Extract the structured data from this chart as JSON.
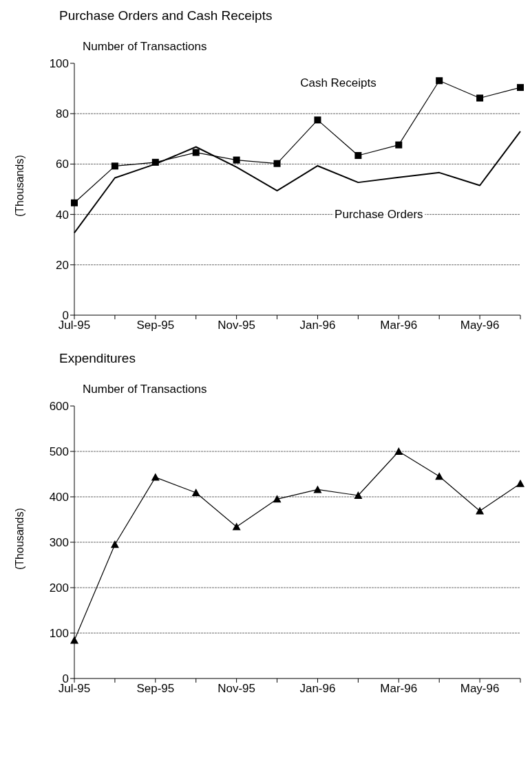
{
  "chart_data": [
    {
      "type": "line",
      "title": "Purchase Orders and Cash Receipts",
      "subtitle": "Number of Transactions",
      "ylabel": "(Thousands)",
      "categories": [
        "Jul-95",
        null,
        "Sep-95",
        null,
        "Nov-95",
        null,
        "Jan-96",
        null,
        "Mar-96",
        null,
        "May-96",
        null
      ],
      "series": [
        {
          "name": "Cash Receipts",
          "color": "#000000",
          "marker": "square",
          "values": [
            44.6,
            59.2,
            60.7,
            64.6,
            61.6,
            60.2,
            77.5,
            63.4,
            67.6,
            93.1,
            86.2,
            90.4
          ]
        },
        {
          "name": "Purchase Orders",
          "color": "#000000",
          "marker": "none",
          "values": [
            32.7,
            54.5,
            60.0,
            66.8,
            58.8,
            49.4,
            59.3,
            52.7,
            54.7,
            56.6,
            51.5,
            73.0
          ]
        }
      ],
      "ylim": [
        0,
        100
      ],
      "yticks": [
        0,
        20,
        40,
        60,
        80,
        100
      ],
      "grid": "y",
      "legend": false,
      "line_style": "solid"
    },
    {
      "type": "line",
      "title": "Expenditures",
      "subtitle": "Number of Transactions",
      "ylabel": "(Thousands)",
      "categories": [
        "Jul-95",
        null,
        "Sep-95",
        null,
        "Nov-95",
        null,
        "Jan-96",
        null,
        "Mar-96",
        null,
        "May-96",
        null
      ],
      "series": [
        {
          "color": "#000000",
          "marker": "triangle",
          "values": [
            84,
            295,
            443,
            409,
            334,
            395,
            416,
            403,
            500,
            445,
            369,
            429
          ]
        }
      ],
      "ylim": [
        0,
        600
      ],
      "yticks": [
        0,
        100,
        200,
        300,
        400,
        500,
        600
      ],
      "grid": "y",
      "legend": false,
      "line_style": "solid"
    }
  ]
}
